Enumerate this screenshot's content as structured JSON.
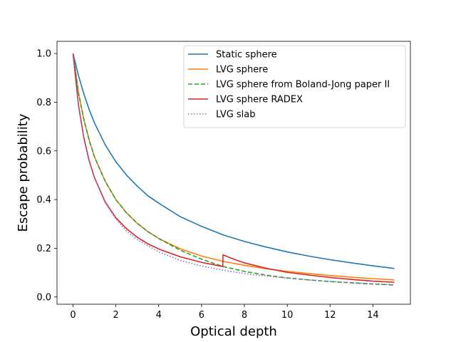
{
  "chart_data": {
    "type": "line",
    "title": "",
    "xlabel": "Optical depth",
    "ylabel": "Escape probability",
    "xlim": [
      -0.75,
      15.75
    ],
    "ylim": [
      -0.03,
      1.05
    ],
    "xticks": [
      0,
      2,
      4,
      6,
      8,
      10,
      12,
      14
    ],
    "yticks": [
      0.0,
      0.2,
      0.4,
      0.6,
      0.8,
      1.0
    ],
    "grid": false,
    "legend_position": "top-right",
    "series": [
      {
        "name": "Static sphere",
        "color": "#1f77b4",
        "dash": "solid",
        "x": [
          0,
          0.25,
          0.5,
          0.75,
          1.0,
          1.5,
          2.0,
          2.5,
          3.0,
          3.5,
          4.0,
          5.0,
          6.0,
          7.0,
          8.0,
          9.0,
          10.0,
          11.0,
          12.0,
          13.0,
          14.0,
          15.0
        ],
        "y": [
          1.0,
          0.91,
          0.835,
          0.77,
          0.715,
          0.625,
          0.555,
          0.5,
          0.455,
          0.415,
          0.385,
          0.33,
          0.29,
          0.255,
          0.228,
          0.205,
          0.185,
          0.168,
          0.153,
          0.14,
          0.128,
          0.117
        ]
      },
      {
        "name": "LVG sphere",
        "color": "#ff7f0e",
        "dash": "solid",
        "x": [
          0,
          0.25,
          0.5,
          0.75,
          1.0,
          1.5,
          2.0,
          2.5,
          3.0,
          3.5,
          4.0,
          5.0,
          6.0,
          7.0,
          8.0,
          9.0,
          10.0,
          11.0,
          12.0,
          13.0,
          14.0,
          15.0
        ],
        "y": [
          1.0,
          0.84,
          0.73,
          0.645,
          0.575,
          0.475,
          0.4,
          0.345,
          0.302,
          0.268,
          0.24,
          0.198,
          0.168,
          0.146,
          0.13,
          0.116,
          0.105,
          0.096,
          0.088,
          0.081,
          0.075,
          0.07
        ]
      },
      {
        "name": "LVG sphere from Boland-Jong paper II",
        "color": "#2ca02c",
        "dash": "dashed",
        "x": [
          0,
          0.25,
          0.5,
          0.75,
          1.0,
          1.5,
          2.0,
          2.5,
          3.0,
          3.5,
          4.0,
          5.0,
          6.0,
          7.0,
          8.0,
          9.0,
          10.0,
          11.0,
          12.0,
          13.0,
          14.0,
          15.0
        ],
        "y": [
          1.0,
          0.84,
          0.73,
          0.645,
          0.575,
          0.475,
          0.4,
          0.345,
          0.302,
          0.268,
          0.24,
          0.192,
          0.155,
          0.125,
          0.105,
          0.09,
          0.078,
          0.07,
          0.063,
          0.058,
          0.053,
          0.049
        ]
      },
      {
        "name": "LVG sphere RADEX",
        "color": "#d62728",
        "dash": "solid",
        "x": [
          0,
          0.25,
          0.5,
          0.75,
          1.0,
          1.5,
          2.0,
          2.5,
          3.0,
          3.5,
          4.0,
          5.0,
          6.0,
          6.99,
          7.0,
          7.5,
          8.0,
          9.0,
          10.0,
          11.0,
          12.0,
          13.0,
          14.0,
          15.0
        ],
        "y": [
          1.0,
          0.79,
          0.655,
          0.56,
          0.49,
          0.39,
          0.325,
          0.28,
          0.245,
          0.218,
          0.197,
          0.165,
          0.142,
          0.125,
          0.173,
          0.155,
          0.14,
          0.118,
          0.101,
          0.09,
          0.08,
          0.072,
          0.065,
          0.06
        ]
      },
      {
        "name": "LVG slab",
        "color": "#9467bd",
        "dash": "dotted",
        "x": [
          0,
          0.1,
          0.2,
          0.3,
          0.5,
          0.75,
          1.0,
          1.5,
          2.0,
          2.5,
          3.0,
          4.0,
          5.0,
          6.0,
          7.0,
          8.0,
          9.0,
          10.0,
          11.0,
          12.0,
          13.0,
          14.0,
          15.0
        ],
        "y": [
          1.0,
          0.906,
          0.827,
          0.761,
          0.658,
          0.562,
          0.49,
          0.388,
          0.32,
          0.27,
          0.235,
          0.185,
          0.15,
          0.127,
          0.11,
          0.096,
          0.086,
          0.077,
          0.07,
          0.064,
          0.058,
          0.054,
          0.05
        ]
      }
    ]
  }
}
